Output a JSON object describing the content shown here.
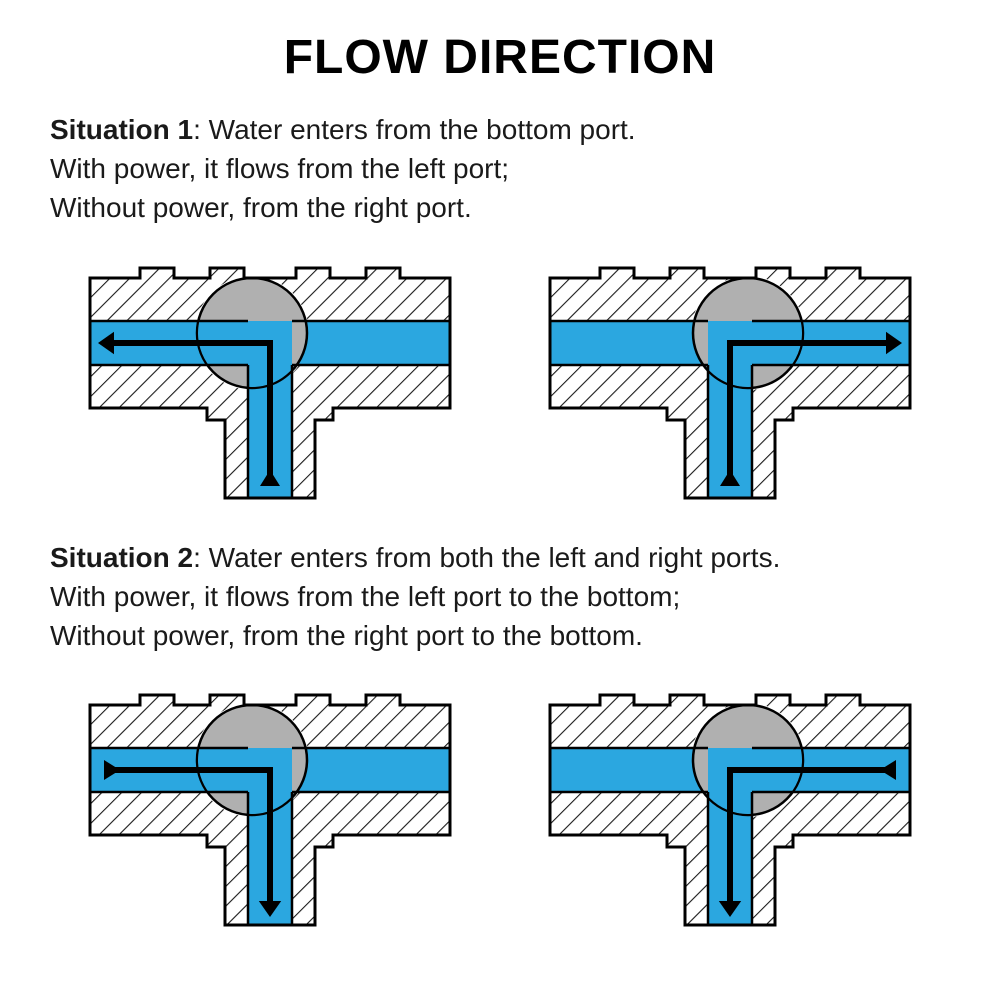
{
  "title": "FLOW DIRECTION",
  "situation1": {
    "label": "Situation 1",
    "line1": ": Water enters from the bottom port.",
    "line2": "With power, it flows from the left port;",
    "line3": "Without power, from the right port."
  },
  "situation2": {
    "label": "Situation 2",
    "line1": ": Water enters from both the left and right ports.",
    "line2": "With power, it flows from the left port to the bottom;",
    "line3": "Without power, from the right port to the bottom."
  },
  "colors": {
    "water": "#2ba7e0",
    "ball": "#b0b0b0",
    "outline": "#000000",
    "hatch": "#1a1a1a",
    "background": "#ffffff"
  },
  "diagrams": {
    "valve_width": 380,
    "valve_height": 260,
    "outer_stroke": 3,
    "arrow_stroke": 6,
    "hatch_spacing": 14,
    "ball_radius": 55,
    "flows": [
      {
        "ballSide": "left",
        "arrow": "bottom-to-left"
      },
      {
        "ballSide": "right",
        "arrow": "bottom-to-right"
      },
      {
        "ballSide": "left",
        "arrow": "left-to-bottom"
      },
      {
        "ballSide": "right",
        "arrow": "right-to-bottom"
      }
    ]
  }
}
